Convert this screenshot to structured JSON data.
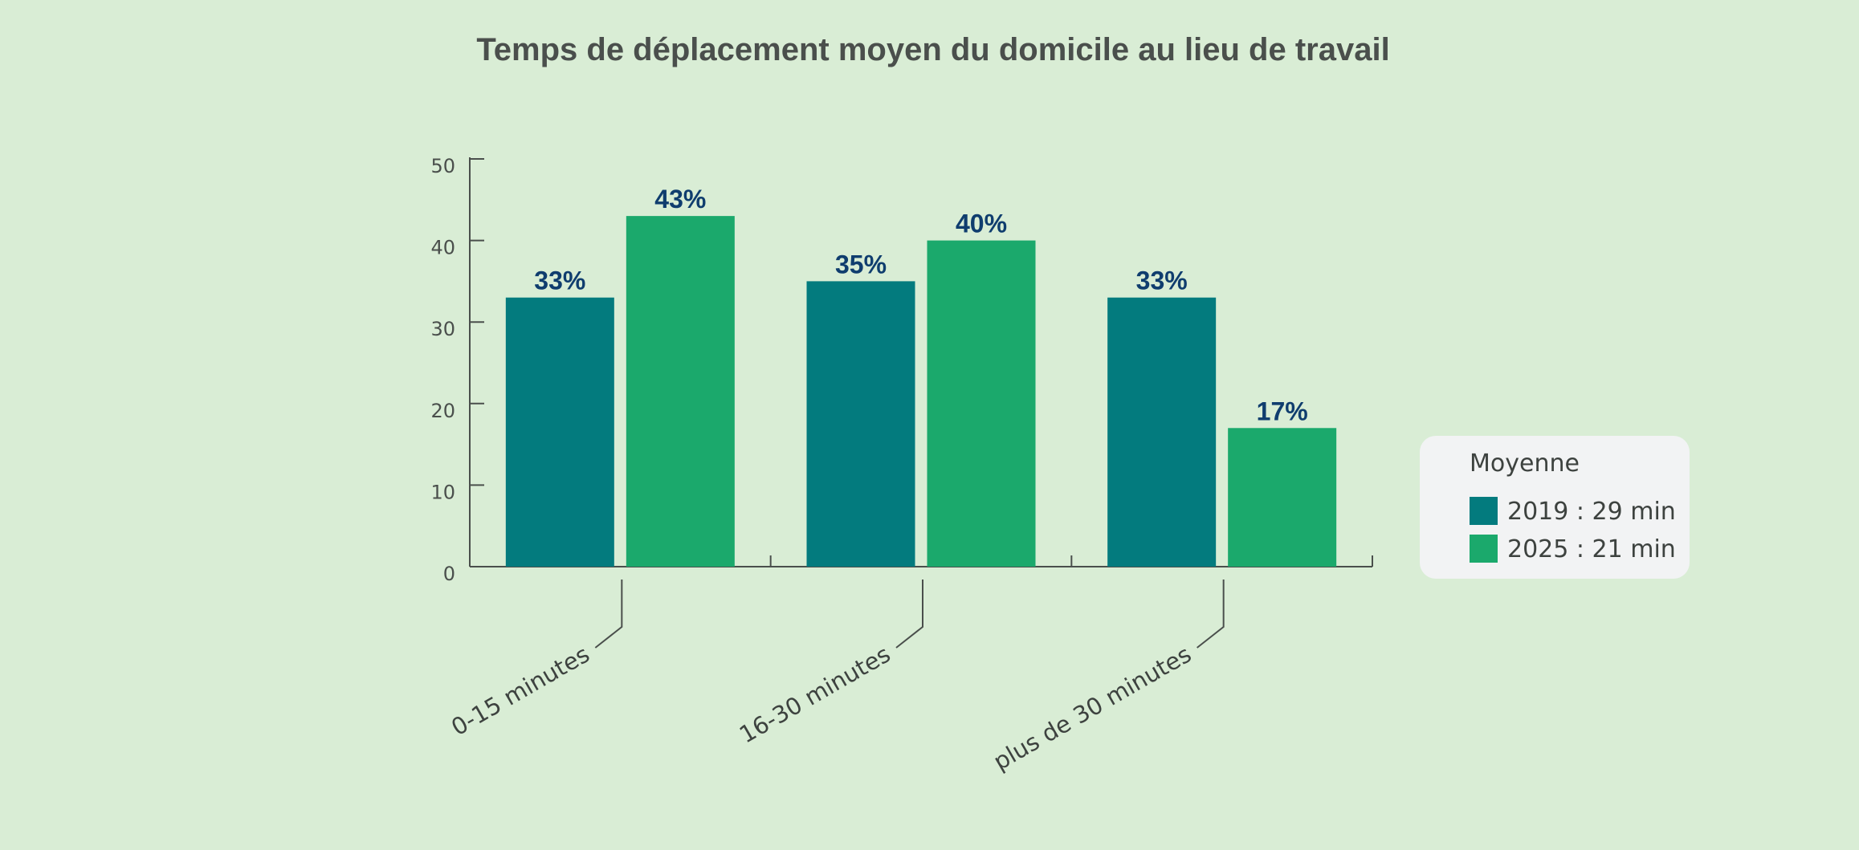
{
  "chart_data": {
    "type": "bar",
    "title": "Temps de déplacement moyen du domicile au lieu de travail",
    "categories": [
      "0-15 minutes",
      "16-30 minutes",
      "plus de 30 minutes"
    ],
    "series": [
      {
        "name": "2019 : 29 min",
        "color": "#037b7e",
        "values": [
          33,
          35,
          33
        ],
        "labels": [
          "33%",
          "35%",
          "33%"
        ]
      },
      {
        "name": "2025 : 21 min",
        "color": "#1ba96c",
        "values": [
          43,
          40,
          17
        ],
        "labels": [
          "43%",
          "40%",
          "17%"
        ]
      }
    ],
    "ylim": [
      0,
      50
    ],
    "yticks": [
      0,
      10,
      20,
      30,
      40,
      50
    ],
    "xlabel": "",
    "ylabel": "",
    "legend": {
      "title": "Moyenne",
      "placement": "right"
    }
  }
}
